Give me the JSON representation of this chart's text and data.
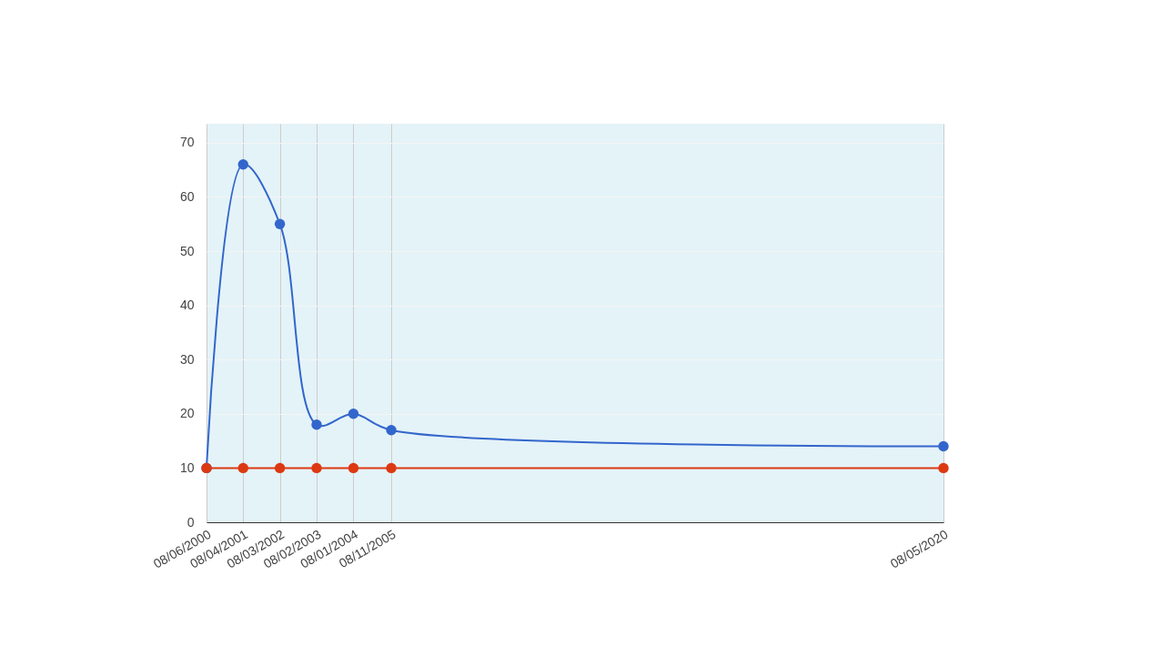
{
  "chart_data": {
    "type": "line",
    "x": [
      "2000-08-06",
      "2001-08-04",
      "2002-08-03",
      "2003-08-02",
      "2004-08-01",
      "2005-08-11",
      "2020-08-05"
    ],
    "series": [
      {
        "color": "#3366cc",
        "values": [
          10,
          66,
          55,
          18,
          20,
          17,
          14
        ]
      },
      {
        "color": "#dc3912",
        "values": [
          10,
          10,
          10,
          10,
          10,
          10,
          10
        ]
      }
    ],
    "xlim": [
      "2000-08-06",
      "2020-08-05"
    ],
    "xticks": [
      {
        "value": "2000-08-06",
        "label": "08/06/2000"
      },
      {
        "value": "2001-08-04",
        "label": "08/04/2001"
      },
      {
        "value": "2002-08-03",
        "label": "08/03/2002"
      },
      {
        "value": "2003-08-02",
        "label": "08/02/2003"
      },
      {
        "value": "2004-08-01",
        "label": "08/01/2004"
      },
      {
        "value": "2005-08-11",
        "label": "08/11/2005"
      },
      {
        "value": "2020-08-05",
        "label": "08/05/2020"
      }
    ],
    "ylim": [
      0,
      73.5
    ],
    "yticks": [
      0,
      10,
      20,
      30,
      40,
      50,
      60,
      70
    ],
    "grid": true,
    "marker": "circle",
    "line_style": "solid"
  }
}
